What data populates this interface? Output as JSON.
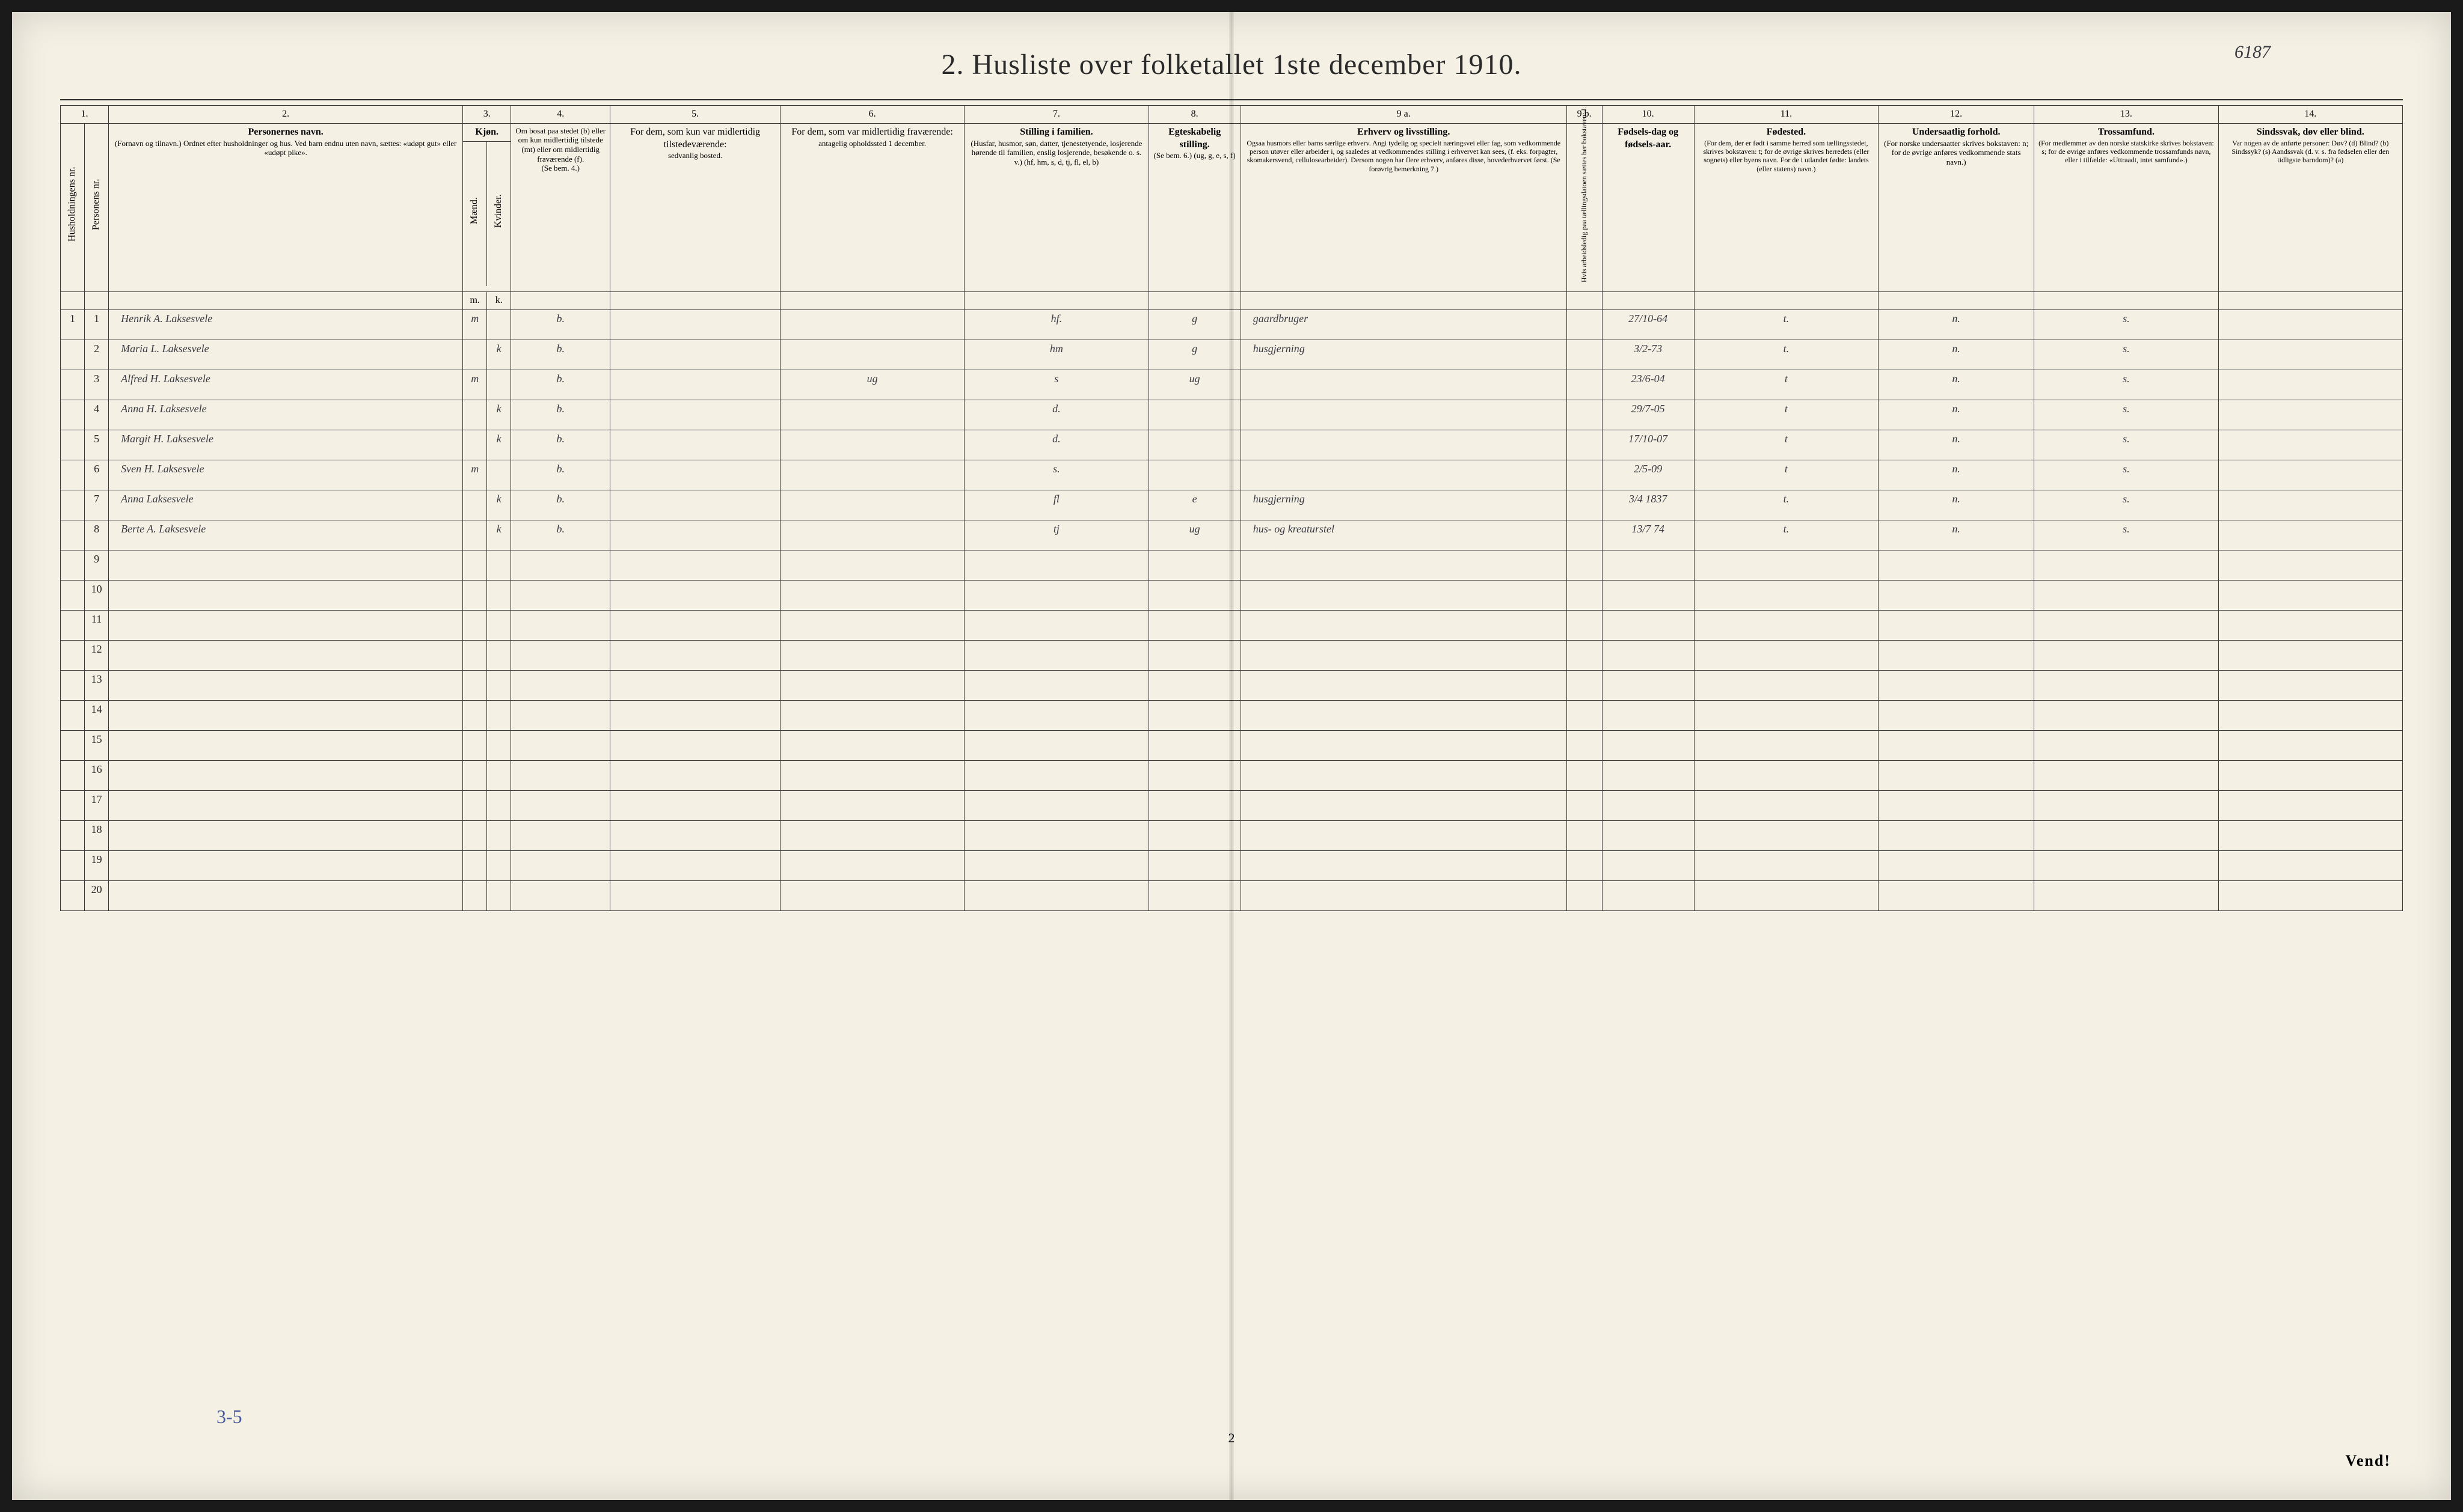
{
  "page_number_handwritten": "6187",
  "title": "2.  Husliste over folketallet 1ste december 1910.",
  "footer_annotation": "3-5",
  "footer_page": "2",
  "vend": "Vend!",
  "column_numbers": [
    "1.",
    "2.",
    "3.",
    "4.",
    "5.",
    "6.",
    "7.",
    "8.",
    "9 a.",
    "9 b.",
    "10.",
    "11.",
    "12.",
    "13.",
    "14."
  ],
  "headers": {
    "c1a": "Husholdningens nr.",
    "c1b": "Personens nr.",
    "c2_title": "Personernes navn.",
    "c2_sub": "(Fornavn og tilnavn.)\nOrdnet efter husholdninger og hus.\nVed barn endnu uten navn, sættes: «udøpt gut» eller «udøpt pike».",
    "c3_title": "Kjøn.",
    "c3a": "Mænd.",
    "c3b": "Kvinder.",
    "c4_title": "Om bosat paa stedet (b) eller om kun midlertidig tilstede (mt) eller om midlertidig fraværende (f).",
    "c4_sub": "(Se bem. 4.)",
    "c5_title": "For dem, som kun var midlertidig tilstedeværende:",
    "c5_sub": "sedvanlig bosted.",
    "c6_title": "For dem, som var midlertidig fraværende:",
    "c6_sub": "antagelig opholdssted 1 december.",
    "c7_title": "Stilling i familien.",
    "c7_sub": "(Husfar, husmor, søn, datter, tjenestetyende, losjerende hørende til familien, enslig losjerende, besøkende o. s. v.)\n(hf, hm, s, d, tj, fl, el, b)",
    "c8_title": "Egteskabelig stilling.",
    "c8_sub": "(Se bem. 6.)\n(ug, g, e, s, f)",
    "c9_title": "Erhverv og livsstilling.",
    "c9_sub": "Ogsaa husmors eller barns særlige erhverv. Angi tydelig og specielt næringsvei eller fag, som vedkommende person utøver eller arbeider i, og saaledes at vedkommendes stilling i erhvervet kan sees, (f. eks. forpagter, skomakersvend, cellulosearbeider). Dersom nogen har flere erhverv, anføres disse, hovederhvervet først.\n(Se forøvrig bemerkning 7.)",
    "c9b": "Hvis arbeidsledig paa tællingsdatoen sættes her bokstaven: l.",
    "c10_title": "Fødsels-dag og fødsels-aar.",
    "c11_title": "Fødested.",
    "c11_sub": "(For dem, der er født i samme herred som tællingsstedet, skrives bokstaven: t; for de øvrige skrives herredets (eller sognets) eller byens navn. For de i utlandet fødte: landets (eller statens) navn.)",
    "c12_title": "Undersaatlig forhold.",
    "c12_sub": "(For norske undersaatter skrives bokstaven: n; for de øvrige anføres vedkommende stats navn.)",
    "c13_title": "Trossamfund.",
    "c13_sub": "(For medlemmer av den norske statskirke skrives bokstaven: s; for de øvrige anføres vedkommende trossamfunds navn, eller i tilfælde: «Uttraadt, intet samfund».)",
    "c14_title": "Sindssvak, døv eller blind.",
    "c14_sub": "Var nogen av de anførte personer:\nDøv? (d)\nBlind? (b)\nSindssyk? (s)\nAandssvak (d. v. s. fra fødselen eller den tidligste barndom)? (a)"
  },
  "rows": [
    {
      "hh": "1",
      "pn": "1",
      "name": "Henrik A. Laksesvele",
      "m": "m",
      "k": "",
      "res": "b.",
      "c5": "",
      "c6": "",
      "fam": "hf.",
      "mar": "g",
      "occ": "gaardbruger",
      "led": "",
      "dob": "27/10-64",
      "birthplace": "t.",
      "nat": "n.",
      "rel": "s.",
      "dis": ""
    },
    {
      "hh": "",
      "pn": "2",
      "name": "Maria L. Laksesvele",
      "m": "",
      "k": "k",
      "res": "b.",
      "c5": "",
      "c6": "",
      "fam": "hm",
      "mar": "g",
      "occ": "husgjerning",
      "led": "",
      "dob": "3/2-73",
      "birthplace": "t.",
      "nat": "n.",
      "rel": "s.",
      "dis": ""
    },
    {
      "hh": "",
      "pn": "3",
      "name": "Alfred H. Laksesvele",
      "m": "m",
      "k": "",
      "res": "b.",
      "c5": "",
      "c6": "ug",
      "fam": "s",
      "mar": "ug",
      "occ": "",
      "led": "",
      "dob": "23/6-04",
      "birthplace": "t",
      "nat": "n.",
      "rel": "s.",
      "dis": ""
    },
    {
      "hh": "",
      "pn": "4",
      "name": "Anna H. Laksesvele",
      "m": "",
      "k": "k",
      "res": "b.",
      "c5": "",
      "c6": "",
      "fam": "d.",
      "mar": "",
      "occ": "",
      "led": "",
      "dob": "29/7-05",
      "birthplace": "t",
      "nat": "n.",
      "rel": "s.",
      "dis": ""
    },
    {
      "hh": "",
      "pn": "5",
      "name": "Margit H. Laksesvele",
      "m": "",
      "k": "k",
      "res": "b.",
      "c5": "",
      "c6": "",
      "fam": "d.",
      "mar": "",
      "occ": "",
      "led": "",
      "dob": "17/10-07",
      "birthplace": "t",
      "nat": "n.",
      "rel": "s.",
      "dis": ""
    },
    {
      "hh": "",
      "pn": "6",
      "name": "Sven H. Laksesvele",
      "m": "m",
      "k": "",
      "res": "b.",
      "c5": "",
      "c6": "",
      "fam": "s.",
      "mar": "",
      "occ": "",
      "led": "",
      "dob": "2/5-09",
      "birthplace": "t",
      "nat": "n.",
      "rel": "s.",
      "dis": ""
    },
    {
      "hh": "",
      "pn": "7",
      "name": "Anna Laksesvele",
      "m": "",
      "k": "k",
      "res": "b.",
      "c5": "",
      "c6": "",
      "fam": "fl",
      "mar": "e",
      "occ": "husgjerning",
      "led": "",
      "dob": "3/4 1837",
      "birthplace": "t.",
      "nat": "n.",
      "rel": "s.",
      "dis": ""
    },
    {
      "hh": "",
      "pn": "8",
      "name": "Berte A. Laksesvele",
      "m": "",
      "k": "k",
      "res": "b.",
      "c5": "",
      "c6": "",
      "fam": "tj",
      "mar": "ug",
      "occ": "hus- og kreaturstel",
      "led": "",
      "dob": "13/7 74",
      "birthplace": "t.",
      "nat": "n.",
      "rel": "s.",
      "dis": ""
    }
  ],
  "empty_rows": [
    9,
    10,
    11,
    12,
    13,
    14,
    15,
    16,
    17,
    18,
    19,
    20
  ]
}
